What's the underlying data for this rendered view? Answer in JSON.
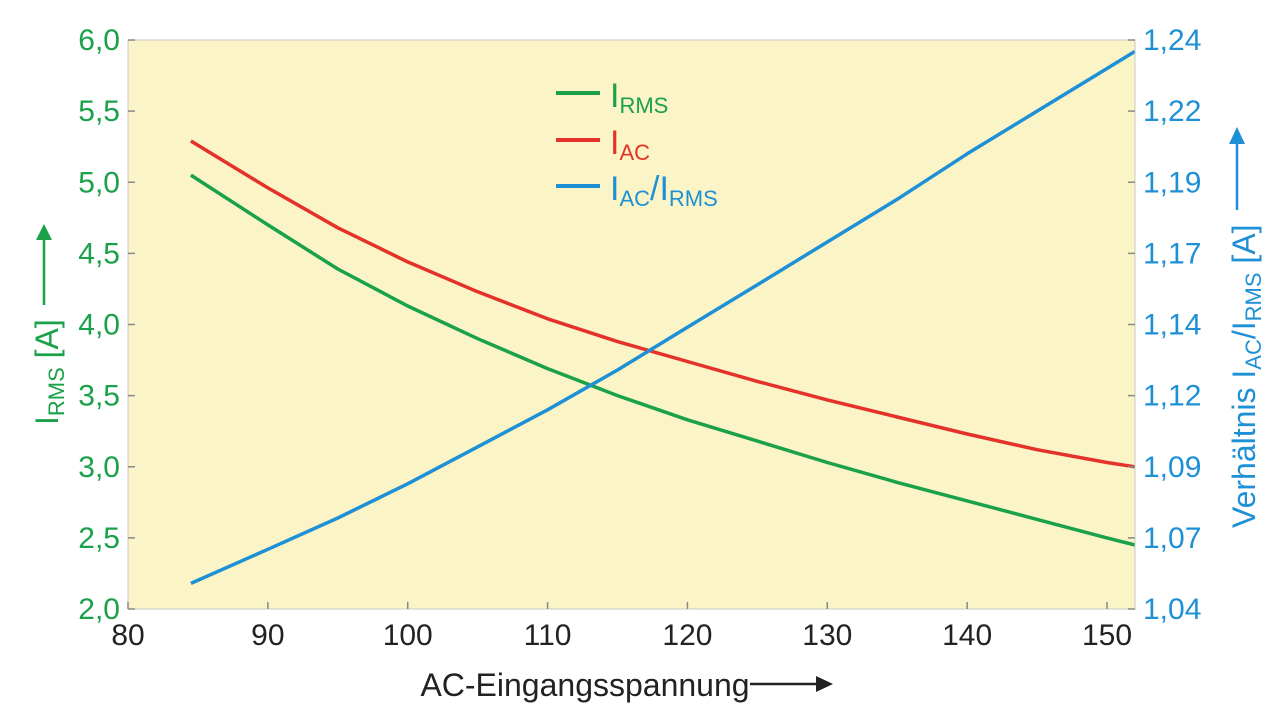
{
  "chart_data": {
    "type": "line",
    "xlabel": "AC-Eingangsspannung",
    "xlim": [
      80,
      152
    ],
    "x_ticks": [
      "80",
      "90",
      "100",
      "110",
      "120",
      "130",
      "140",
      "150"
    ],
    "y_left": {
      "label_main": "I",
      "label_sub": "RMS",
      "label_unit": " [A]",
      "lim": [
        2.0,
        6.0
      ],
      "ticks": [
        "2,0",
        "2,5",
        "3,0",
        "3,5",
        "4,0",
        "4,5",
        "5,0",
        "5,5",
        "6,0"
      ],
      "color": "#1aa14a"
    },
    "y_right": {
      "label_main": "Verhältnis I",
      "label_sub1": "AC",
      "label_mid": "/I",
      "label_sub2": "RMS",
      "label_unit": " [A]",
      "lim": [
        1.04,
        1.24
      ],
      "ticks": [
        "1,04",
        "1,07",
        "1,09",
        "1,12",
        "1,14",
        "1,17",
        "1,19",
        "1,22",
        "1,24"
      ],
      "color": "#1e90d6"
    },
    "plot_background": "#fbf4c6",
    "series": [
      {
        "legend_main": "I",
        "legend_sub": "RMS",
        "legend_rest": "",
        "legend_sub2": "",
        "axis": "left",
        "color": "#1aa14a",
        "x": [
          84.5,
          90,
          95,
          100,
          105,
          110,
          115,
          120,
          125,
          130,
          135,
          140,
          145,
          150,
          152
        ],
        "y": [
          5.05,
          4.7,
          4.39,
          4.13,
          3.9,
          3.69,
          3.5,
          3.33,
          3.18,
          3.03,
          2.89,
          2.76,
          2.63,
          2.5,
          2.45
        ]
      },
      {
        "legend_main": "I",
        "legend_sub": "AC",
        "legend_rest": "",
        "legend_sub2": "",
        "axis": "left",
        "color": "#e4322b",
        "x": [
          84.5,
          90,
          95,
          100,
          105,
          110,
          115,
          120,
          125,
          130,
          135,
          140,
          145,
          150,
          152
        ],
        "y": [
          5.29,
          4.96,
          4.68,
          4.44,
          4.23,
          4.04,
          3.88,
          3.74,
          3.6,
          3.47,
          3.35,
          3.23,
          3.12,
          3.03,
          3.0
        ]
      },
      {
        "legend_main": "I",
        "legend_sub": "AC",
        "legend_rest": "/I",
        "legend_sub2": "RMS",
        "axis": "right",
        "color": "#1e90d6",
        "x": [
          84.5,
          90,
          95,
          100,
          105,
          110,
          115,
          120,
          125,
          130,
          135,
          140,
          145,
          150,
          152
        ],
        "y": [
          1.049,
          1.061,
          1.072,
          1.084,
          1.097,
          1.11,
          1.124,
          1.139,
          1.154,
          1.169,
          1.184,
          1.2,
          1.215,
          1.23,
          1.236
        ]
      }
    ]
  }
}
